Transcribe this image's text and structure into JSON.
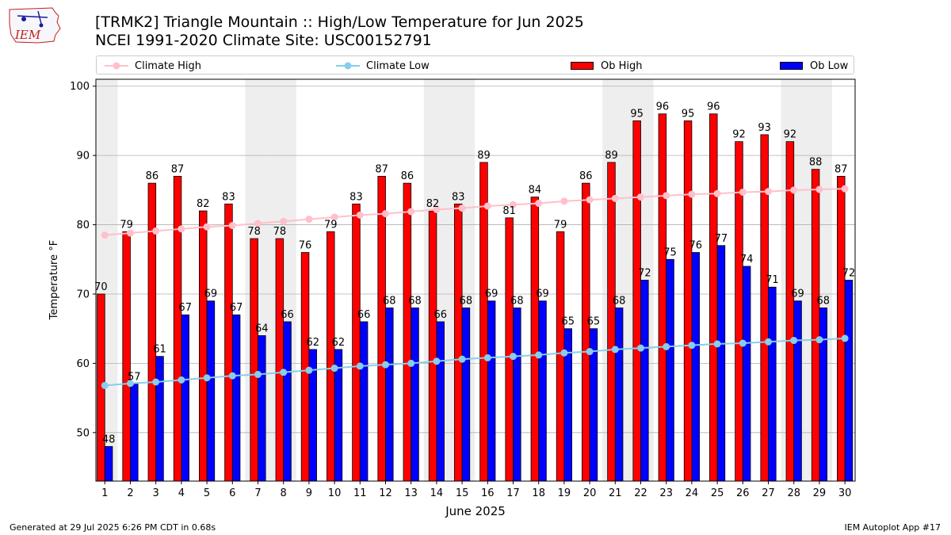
{
  "header": {
    "title_line1": "[TRMK2] Triangle Mountain :: High/Low Temperature for Jun 2025",
    "title_line2": "NCEI 1991-2020 Climate Site: USC00152791",
    "logo_text": "IEM"
  },
  "legend": {
    "climate_high": "Climate High",
    "climate_low": "Climate Low",
    "ob_high": "Ob High",
    "ob_low": "Ob Low",
    "placement": "top, above plot"
  },
  "footer": {
    "left": "Generated at 29 Jul 2025 6:26 PM CDT in 0.68s",
    "right": "IEM Autoplot App #17"
  },
  "colors": {
    "ob_high": "#ff0000",
    "ob_low": "#0000ff",
    "climate_high": "#ffc0cb",
    "climate_low": "#87ceeb",
    "weekend_shade": "#eeeeee",
    "grid": "#b0b0b0"
  },
  "chart_data": {
    "type": "bar",
    "xlabel": "June 2025",
    "ylabel": "Temperature °F",
    "ylim": [
      43,
      101
    ],
    "yticks": [
      50,
      60,
      70,
      80,
      90,
      100
    ],
    "grid": "horizontal",
    "categories": [
      1,
      2,
      3,
      4,
      5,
      6,
      7,
      8,
      9,
      10,
      11,
      12,
      13,
      14,
      15,
      16,
      17,
      18,
      19,
      20,
      21,
      22,
      23,
      24,
      25,
      26,
      27,
      28,
      29,
      30
    ],
    "weekend_shaded_days": [
      1,
      7,
      8,
      14,
      15,
      21,
      22,
      28,
      29
    ],
    "series": [
      {
        "name": "Ob High",
        "kind": "bar",
        "values": [
          70,
          79,
          86,
          87,
          82,
          83,
          78,
          78,
          76,
          79,
          83,
          87,
          86,
          82,
          83,
          89,
          81,
          84,
          79,
          86,
          89,
          95,
          96,
          95,
          96,
          92,
          93,
          92,
          88,
          87
        ]
      },
      {
        "name": "Ob Low",
        "kind": "bar",
        "values": [
          48,
          57,
          61,
          67,
          69,
          67,
          64,
          66,
          62,
          62,
          66,
          68,
          68,
          66,
          68,
          69,
          68,
          69,
          65,
          65,
          68,
          72,
          75,
          76,
          77,
          74,
          71,
          69,
          68,
          72
        ]
      },
      {
        "name": "Climate High",
        "kind": "line",
        "values": [
          78.5,
          78.8,
          79.1,
          79.4,
          79.7,
          79.9,
          80.2,
          80.5,
          80.8,
          81.1,
          81.4,
          81.6,
          81.9,
          82.2,
          82.4,
          82.7,
          82.9,
          83.1,
          83.4,
          83.6,
          83.8,
          84.0,
          84.2,
          84.4,
          84.5,
          84.7,
          84.8,
          85.0,
          85.1,
          85.2
        ]
      },
      {
        "name": "Climate Low",
        "kind": "line",
        "values": [
          56.8,
          57.1,
          57.3,
          57.6,
          57.9,
          58.2,
          58.4,
          58.7,
          59.0,
          59.3,
          59.6,
          59.8,
          60.0,
          60.3,
          60.6,
          60.8,
          61.0,
          61.2,
          61.5,
          61.7,
          62.0,
          62.2,
          62.4,
          62.6,
          62.8,
          62.9,
          63.1,
          63.3,
          63.4,
          63.6
        ]
      }
    ]
  }
}
